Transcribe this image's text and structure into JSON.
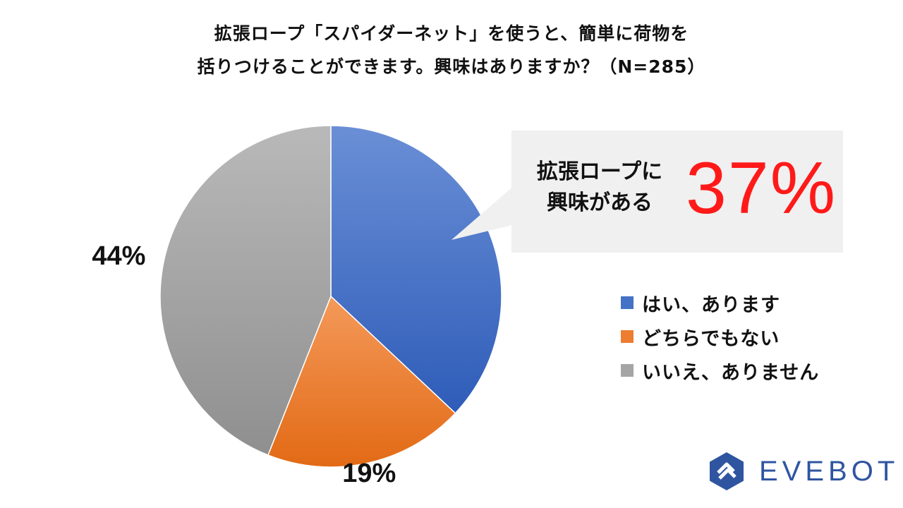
{
  "title": {
    "line1": "拡張ロープ「スパイダーネット」を使うと、簡単に荷物を",
    "line2": "括りつけることができます。興味はありますか？（N=285）"
  },
  "chart_data": {
    "type": "pie",
    "title": "拡張ロープ「スパイダーネット」を使うと、簡単に荷物を括りつけることができます。興味はありますか？（N=285）",
    "slices": [
      {
        "label": "はい、あります",
        "value": 37,
        "display": "",
        "color": "#4472c4"
      },
      {
        "label": "どちらでもない",
        "value": 19,
        "display": "19%",
        "color": "#ed7d31"
      },
      {
        "label": "いいえ、ありません",
        "value": 44,
        "display": "44%",
        "color": "#a5a5a5"
      }
    ],
    "legend_position": "right"
  },
  "callout": {
    "line1": "拡張ロープに",
    "line2": "興味がある",
    "value": "37%"
  },
  "logo": {
    "text": "EVEBOT",
    "icon": "evebot-hexagon-logo",
    "color": "#2f55a1"
  }
}
